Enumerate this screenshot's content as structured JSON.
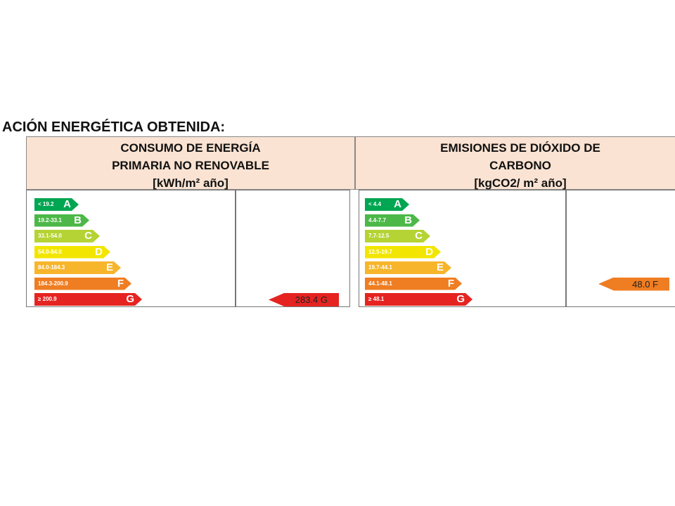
{
  "title": "ACIÓN ENERGÉTICA OBTENIDA:",
  "panels": [
    {
      "header": [
        "CONSUMO DE ENERGÍA",
        "PRIMARIA NO RENOVABLE",
        "[kWh/m² año]"
      ],
      "scale": [
        {
          "range": "< 19.2",
          "letter": "A"
        },
        {
          "range": "19.2-33.1",
          "letter": "B"
        },
        {
          "range": "33.1-54.0",
          "letter": "C"
        },
        {
          "range": "54.0-84.0",
          "letter": "D"
        },
        {
          "range": "84.0-184.3",
          "letter": "E"
        },
        {
          "range": "184.3-200.9",
          "letter": "F"
        },
        {
          "range": "≥ 200.9",
          "letter": "G"
        }
      ],
      "result": "283.4 G"
    },
    {
      "header": [
        "EMISIONES DE DIÓXIDO DE",
        "CARBONO",
        "[kgCO2/ m² año]"
      ],
      "scale": [
        {
          "range": "< 4.4",
          "letter": "A"
        },
        {
          "range": "4.4-7.7",
          "letter": "B"
        },
        {
          "range": "7.7-12.5",
          "letter": "C"
        },
        {
          "range": "12.5-19.7",
          "letter": "D"
        },
        {
          "range": "19.7-44.1",
          "letter": "E"
        },
        {
          "range": "44.1-48.1",
          "letter": "F"
        },
        {
          "range": "≥ 48.1",
          "letter": "G"
        }
      ],
      "result": "48.0 F"
    }
  ]
}
